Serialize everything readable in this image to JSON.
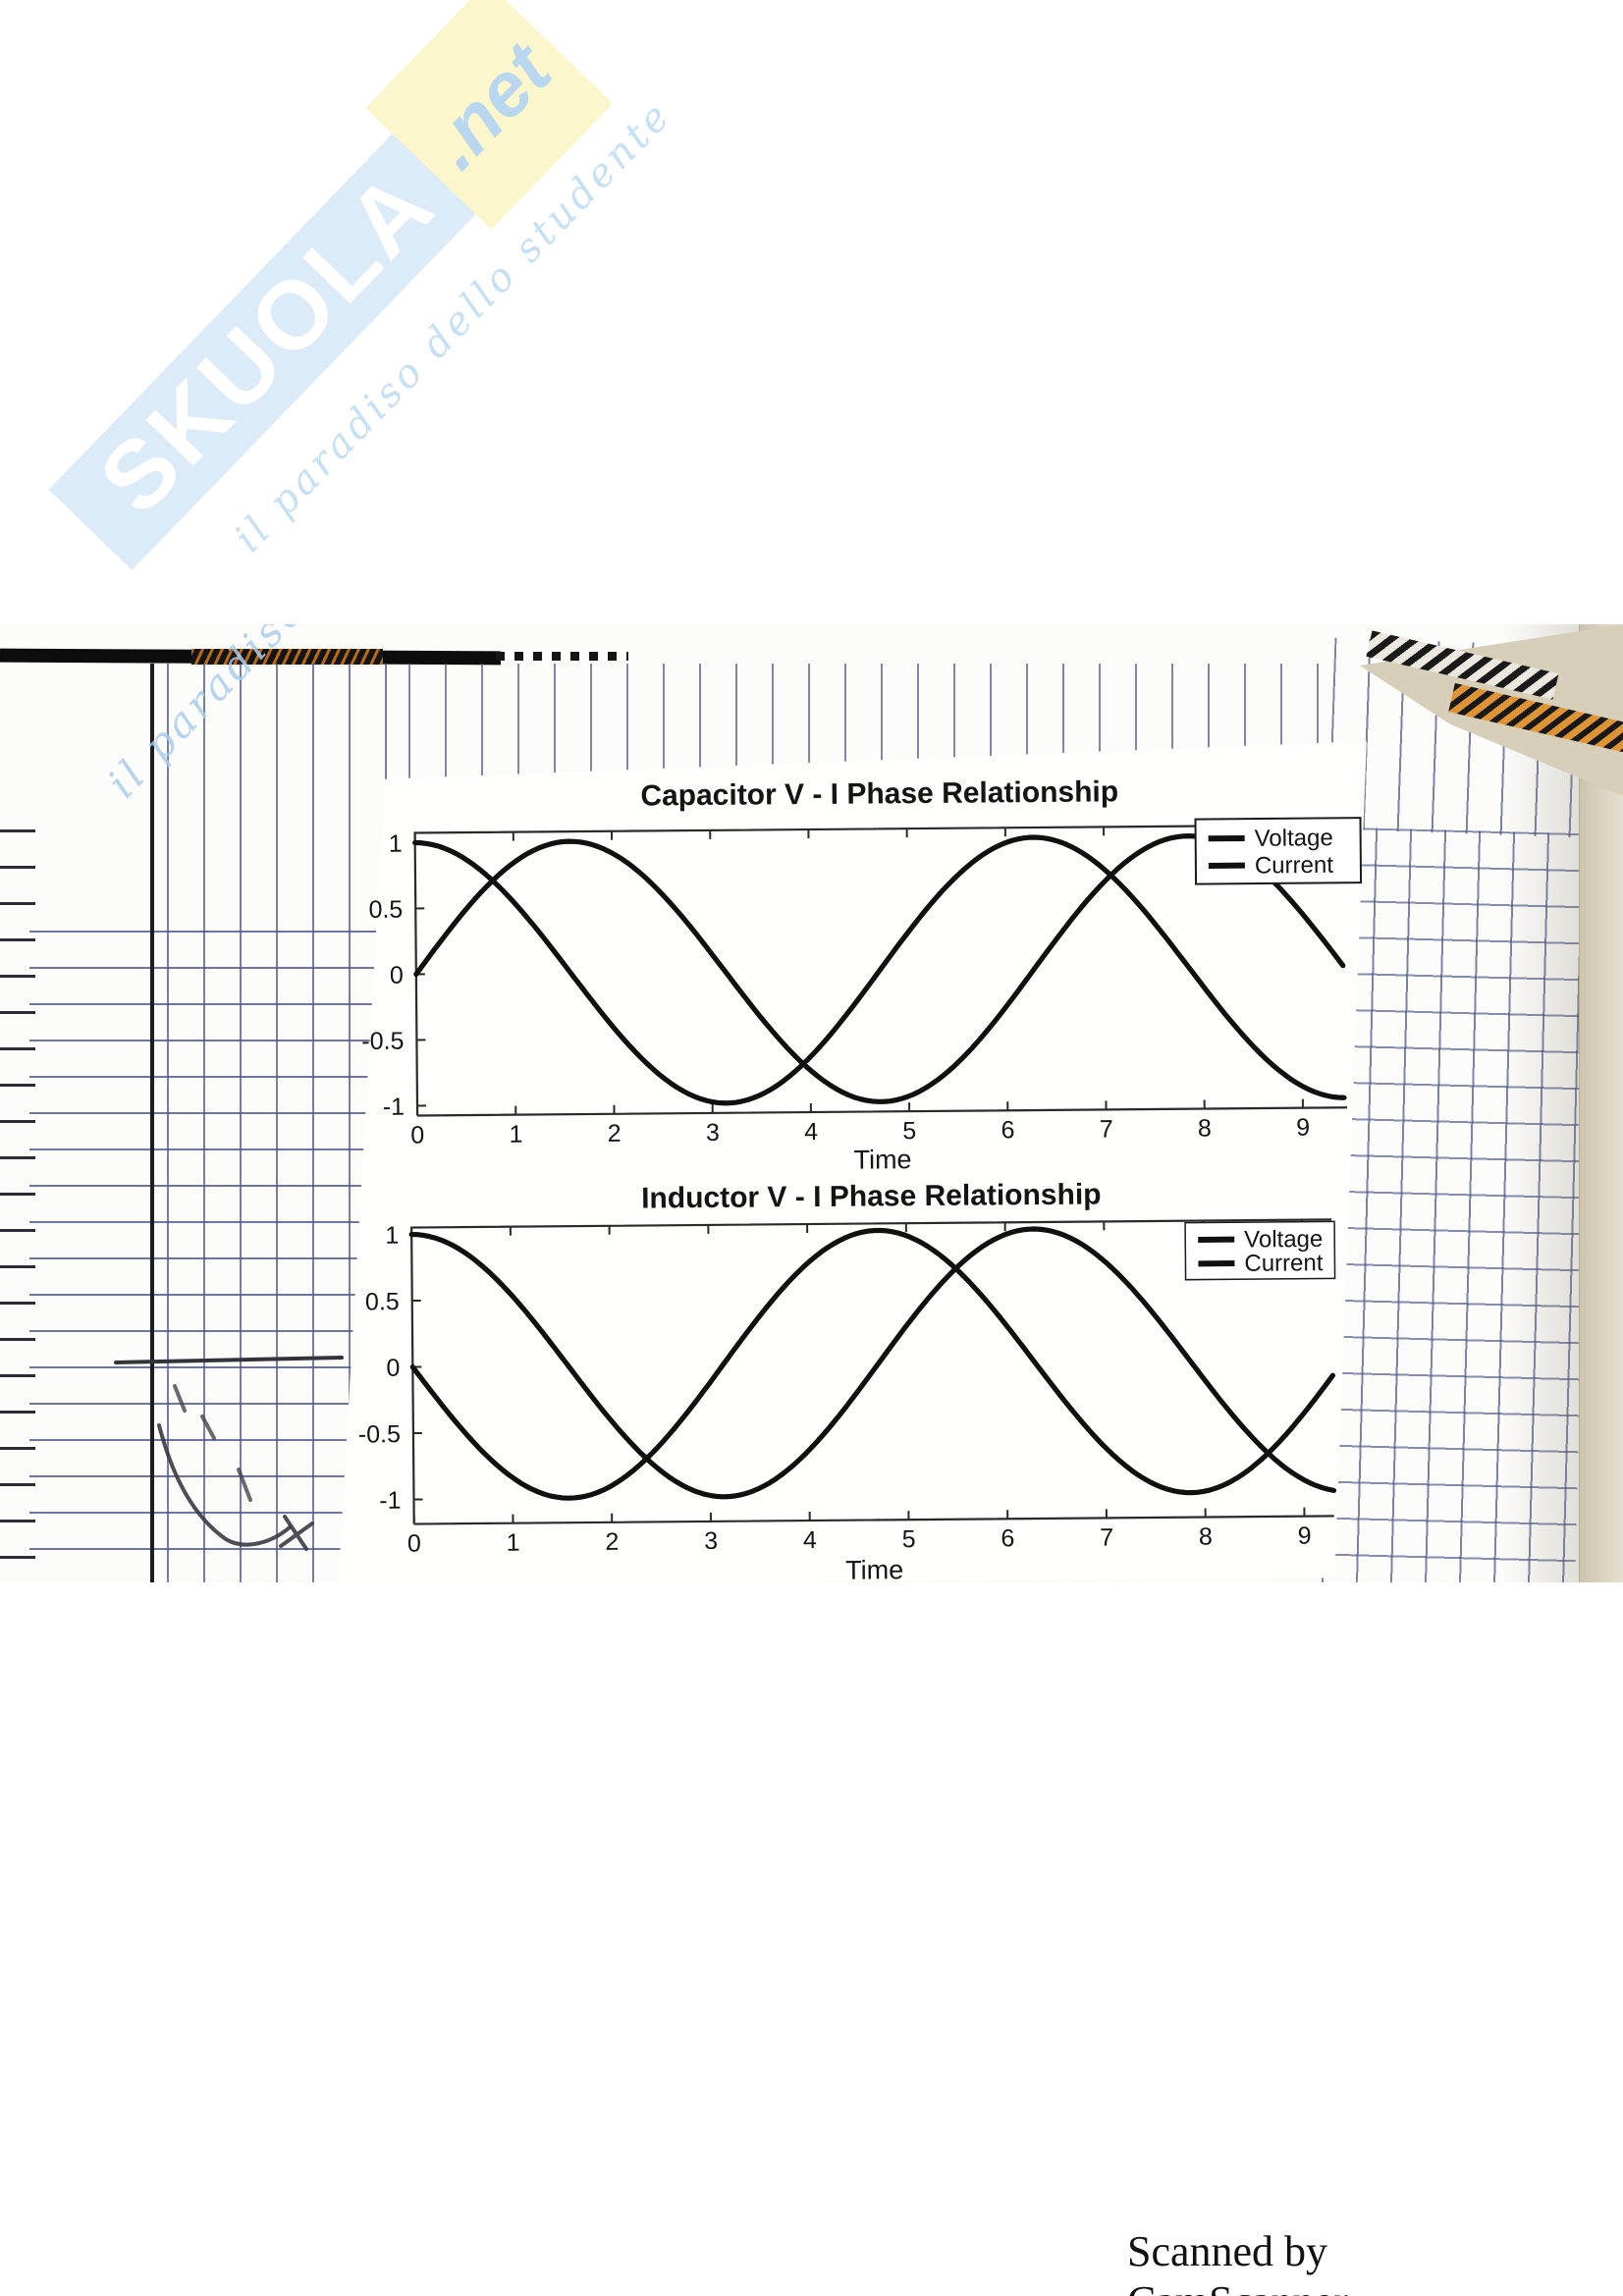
{
  "watermark": {
    "brand": "SKUOLA",
    "suffix": ".net",
    "tagline": "il paradiso dello studente",
    "banner_color": "#dcebf8",
    "suffix_bg": "#fbf6cb",
    "brand_text_color": "#ffffff",
    "script_color": "#c6e0f4"
  },
  "footer": {
    "text": "Scanned by CamScanner"
  },
  "chart_data": [
    {
      "type": "line",
      "title": "Capacitor V - I Phase Relationship",
      "xlabel": "Time",
      "xlim": [
        0,
        9.45
      ],
      "ylim": [
        -1.1,
        1.1
      ],
      "x_ticks": [
        0,
        1,
        2,
        3,
        4,
        5,
        6,
        7,
        8,
        9
      ],
      "y_ticks": [
        {
          "label": "1",
          "value": 1
        },
        {
          "label": "0.5",
          "value": 0.5
        },
        {
          "label": "0",
          "value": 0
        },
        {
          "label": "-0.5",
          "value": -0.5
        },
        {
          "label": "-1",
          "value": -1
        }
      ],
      "grid": false,
      "legend_position": "top-right",
      "line_color": "#101010",
      "series": [
        {
          "name": "Voltage",
          "waveform": "sine",
          "amplitude": 1,
          "phase_deg": 0,
          "period": 6.283,
          "description": "sin(t)"
        },
        {
          "name": "Current",
          "waveform": "sine",
          "amplitude": 1,
          "phase_deg": 90,
          "period": 6.283,
          "description": "cos(t), current leads voltage by 90 deg"
        }
      ]
    },
    {
      "type": "line",
      "title": "Inductor V - I Phase Relationship",
      "xlabel": "Time",
      "xlim": [
        0,
        9.3
      ],
      "ylim": [
        -1.1,
        1.1
      ],
      "x_ticks": [
        0,
        1,
        2,
        3,
        4,
        5,
        6,
        7,
        8,
        9
      ],
      "y_ticks": [
        {
          "label": "1",
          "value": 1
        },
        {
          "label": "0.5",
          "value": 0.5
        },
        {
          "label": "0",
          "value": 0
        },
        {
          "label": "-0.5",
          "value": -0.5
        },
        {
          "label": "-1",
          "value": -1
        }
      ],
      "grid": false,
      "legend_position": "top-right",
      "line_color": "#101010",
      "series": [
        {
          "name": "Voltage",
          "waveform": "sine",
          "amplitude": 1,
          "phase_deg": 180,
          "period": 6.283,
          "description": "-sin(t)"
        },
        {
          "name": "Current",
          "waveform": "sine",
          "amplitude": 1,
          "phase_deg": 90,
          "period": 6.283,
          "description": "cos(t), current lags voltage by 90 deg"
        }
      ]
    }
  ]
}
